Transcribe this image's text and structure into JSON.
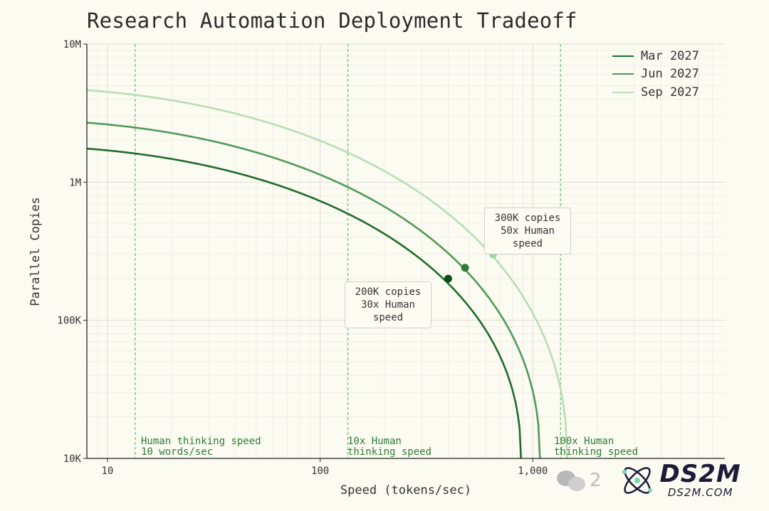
{
  "chart_data": {
    "type": "line",
    "title": "Research Automation Deployment Tradeoff",
    "xlabel": "Speed (tokens/sec)",
    "ylabel": "Parallel Copies",
    "x_scale": "log",
    "y_scale": "log",
    "xlim": [
      8,
      8000
    ],
    "ylim": [
      10000,
      10000000
    ],
    "x_ticks": [
      10,
      100,
      1000
    ],
    "x_tick_labels": [
      "10",
      "100",
      "1,000"
    ],
    "y_ticks": [
      10000,
      100000,
      1000000,
      10000000
    ],
    "y_tick_labels": [
      "10K",
      "100K",
      "1M",
      "10M"
    ],
    "grid": true,
    "legend_position": "top-right",
    "series": [
      {
        "name": "Mar 2027",
        "color": "#1e6b2a",
        "max_copies": 1850000,
        "max_speed": 880,
        "marker": {
          "x": 400,
          "y": 200000,
          "color": "#0f4d1a"
        }
      },
      {
        "name": "Jun 2027",
        "color": "#4f9a57",
        "max_copies": 2850000,
        "max_speed": 1080,
        "marker": {
          "x": 480,
          "y": 240000,
          "color": "#2e7d36"
        }
      },
      {
        "name": "Sep 2027",
        "color": "#b7ddb3",
        "max_copies": 4900000,
        "max_speed": 1450,
        "marker": {
          "x": 650,
          "y": 300000,
          "color": "#a3d6a0"
        }
      }
    ],
    "reference_lines": [
      {
        "x": 13.5,
        "label": "Human thinking speed\n10 words/sec"
      },
      {
        "x": 135,
        "label": "10x Human\nthinking speed"
      },
      {
        "x": 1350,
        "label": "100x Human\nthinking speed"
      }
    ],
    "annotations": [
      {
        "text": "200K copies\n30x Human\nspeed"
      },
      {
        "text": "300K copies\n50x Human\nspeed"
      }
    ],
    "reference_color": "#5cbf6a"
  },
  "watermark": {
    "brand": "DS2M",
    "site": "DS2M.COM",
    "chat_icon": "wechat-icon",
    "partial_char": "2"
  }
}
